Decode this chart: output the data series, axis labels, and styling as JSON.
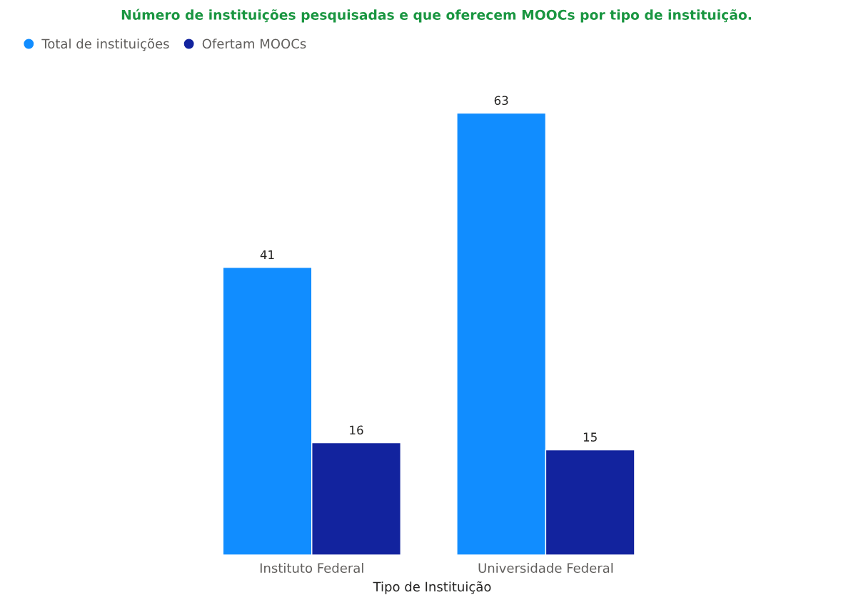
{
  "chart_data": {
    "type": "bar",
    "title": "Número de instituições pesquisadas e que oferecem MOOCs por tipo de instituição.",
    "xlabel": "Tipo de Instituição",
    "categories": [
      "Instituto Federal",
      "Universidade Federal"
    ],
    "series": [
      {
        "name": "Total de instituições",
        "color": "#118dff",
        "values": [
          41,
          63
        ]
      },
      {
        "name": "Ofertam MOOCs",
        "color": "#12239e",
        "values": [
          16,
          15
        ]
      }
    ],
    "data_labels": true,
    "legend": "top left",
    "grid": false,
    "tick_labels": "x"
  }
}
